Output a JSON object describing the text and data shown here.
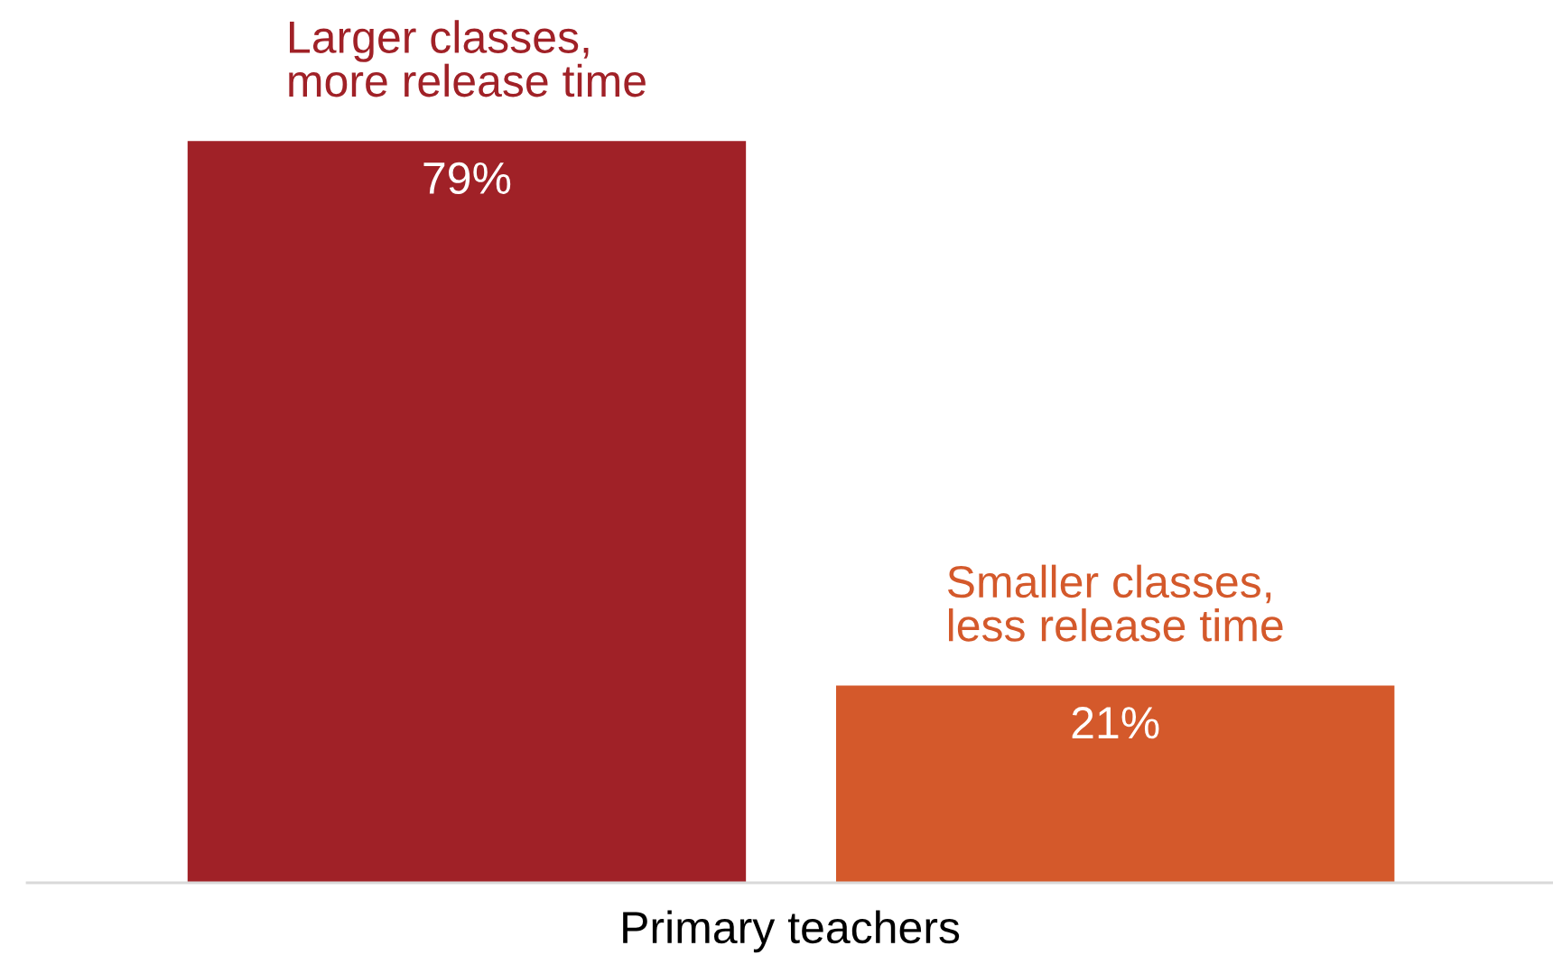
{
  "chart_data": {
    "type": "bar",
    "stacked": true,
    "categories": [
      null,
      null
    ],
    "xlabel": "Primary teachers",
    "series": [
      {
        "name": "Larger classes,\nmore release time",
        "color": "#a02127",
        "values": [
          79,
          null
        ],
        "value_labels": [
          "79%",
          null
        ]
      },
      {
        "name": "Smaller classes,\nless release time",
        "color": "#d4592b",
        "values": [
          null,
          21
        ],
        "value_labels": [
          null,
          "21%"
        ]
      }
    ],
    "legend": false,
    "tick_labels": false
  }
}
